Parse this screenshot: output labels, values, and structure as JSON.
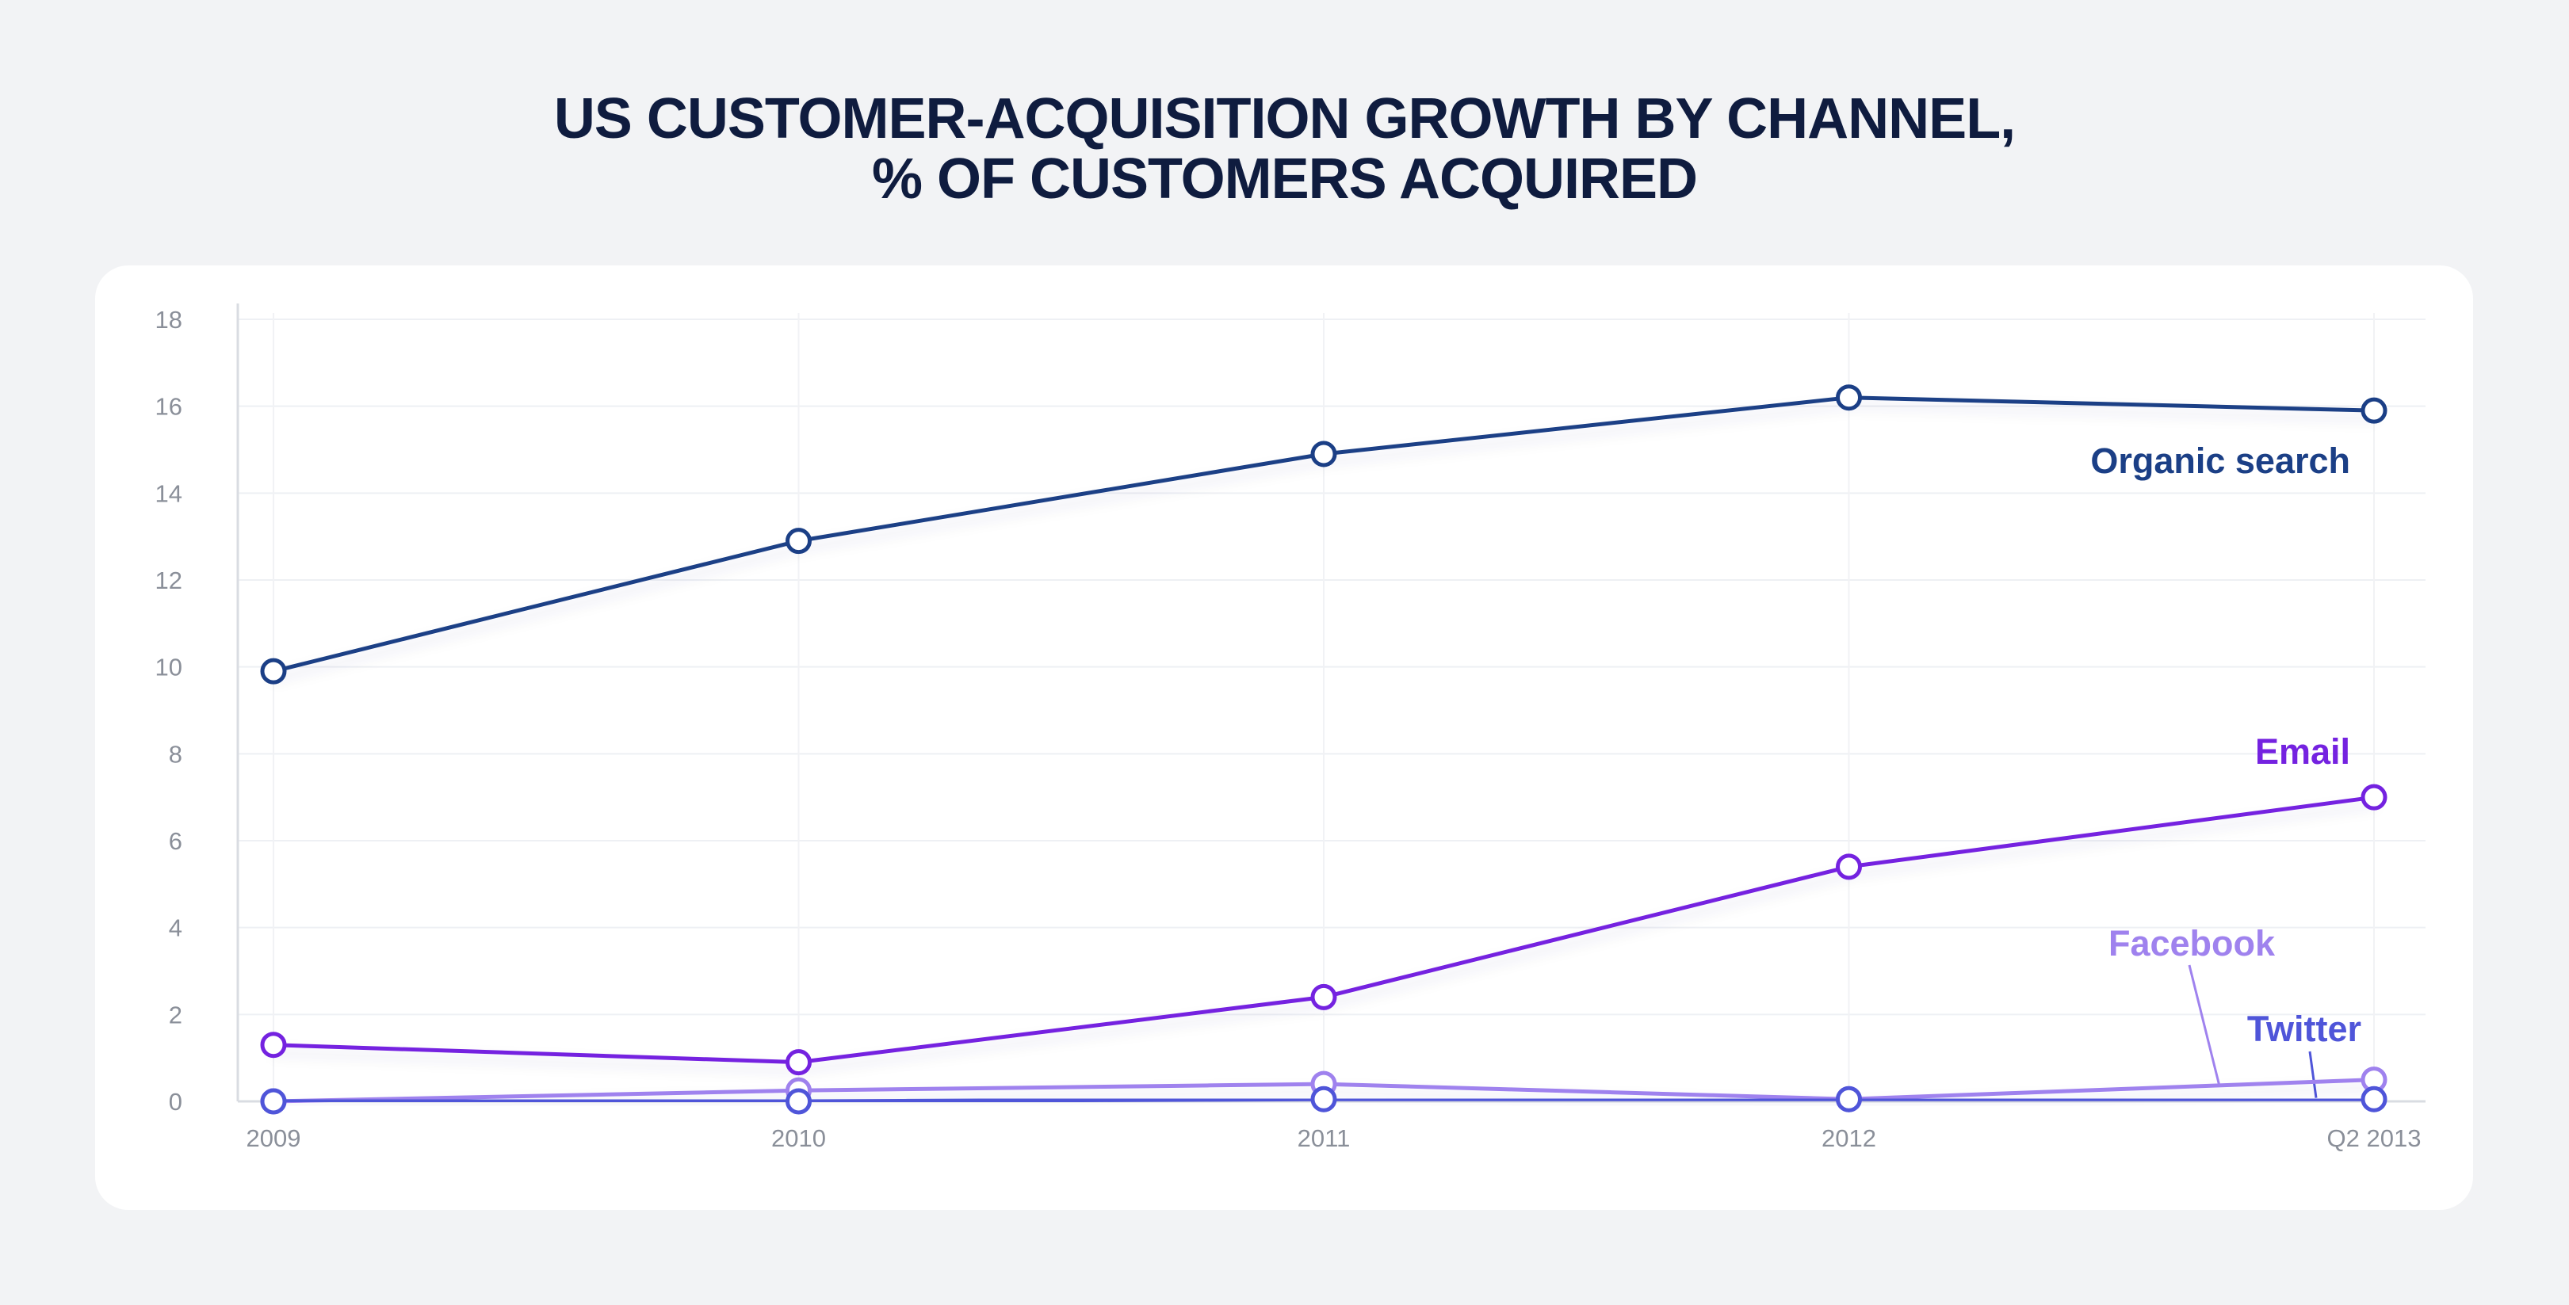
{
  "title_lines": [
    "US CUSTOMER-ACQUISITION GROWTH BY CHANNEL,",
    "% OF CUSTOMERS ACQUIRED"
  ],
  "chart_data": {
    "type": "line",
    "title": "US CUSTOMER-ACQUISITION GROWTH BY CHANNEL, % OF CUSTOMERS ACQUIRED",
    "xlabel": "",
    "ylabel": "",
    "categories": [
      "2009",
      "2010",
      "2011",
      "2012",
      "Q2 2013"
    ],
    "ylim": [
      0,
      18
    ],
    "yticks": [
      0,
      2,
      4,
      6,
      8,
      10,
      12,
      14,
      16,
      18
    ],
    "grid": true,
    "legend": "inline labels next to series",
    "series": [
      {
        "name": "Organic search",
        "label": "Organic search",
        "color": "#1b3f86",
        "values": [
          9.9,
          12.9,
          14.9,
          16.2,
          15.9
        ]
      },
      {
        "name": "Email",
        "label": "Email",
        "color": "#7422e0",
        "values": [
          1.3,
          0.9,
          2.4,
          5.4,
          7.0
        ]
      },
      {
        "name": "Facebook",
        "label": "Facebook",
        "color": "#9f82ee",
        "values": [
          0.0,
          0.25,
          0.4,
          0.05,
          0.5
        ]
      },
      {
        "name": "Twitter",
        "label": "Twitter",
        "color": "#4f55d9",
        "values": [
          0.0,
          0.0,
          0.05,
          0.05,
          0.05
        ]
      }
    ]
  }
}
